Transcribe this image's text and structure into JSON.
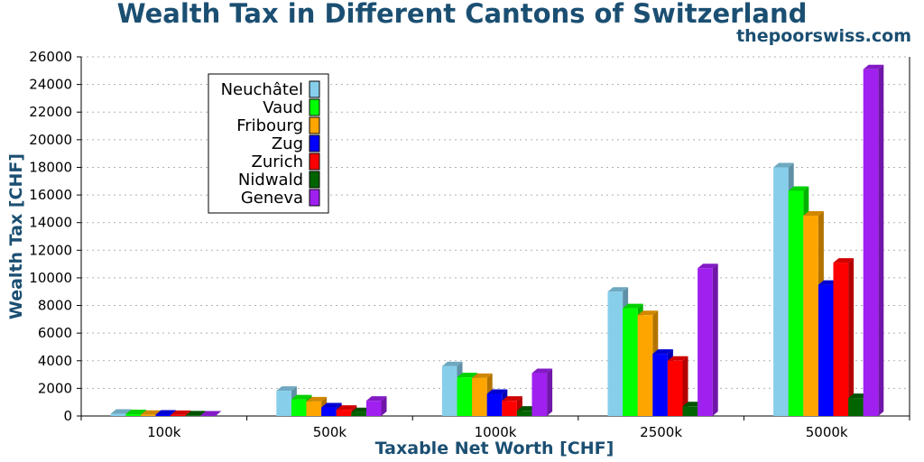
{
  "header": {
    "title": "Wealth Tax in Different Cantons of Switzerland",
    "site": "thepoorswiss.com"
  },
  "chart_data": {
    "type": "bar",
    "title": "Wealth Tax in Different Cantons of Switzerland",
    "xlabel": "Taxable Net Worth [CHF]",
    "ylabel": "Wealth Tax [CHF]",
    "ylim": [
      0,
      26000
    ],
    "yticks": [
      0,
      2000,
      4000,
      6000,
      8000,
      10000,
      12000,
      14000,
      16000,
      18000,
      20000,
      22000,
      24000,
      26000
    ],
    "grid": true,
    "legend_position": "top-left",
    "categories": [
      "100k",
      "500k",
      "1000k",
      "2500k",
      "5000k"
    ],
    "series": [
      {
        "name": "Neuchâtel",
        "color": "#87ceeb",
        "values": [
          160,
          1820,
          3600,
          9000,
          18000
        ]
      },
      {
        "name": "Vaud",
        "color": "#00ff00",
        "values": [
          130,
          1200,
          2800,
          7800,
          16300
        ]
      },
      {
        "name": "Fribourg",
        "color": "#ffa500",
        "values": [
          80,
          1050,
          2750,
          7300,
          14500
        ]
      },
      {
        "name": "Zug",
        "color": "#0000ff",
        "values": [
          100,
          620,
          1600,
          4500,
          9500
        ]
      },
      {
        "name": "Zurich",
        "color": "#ff0000",
        "values": [
          70,
          450,
          1100,
          4000,
          11100
        ]
      },
      {
        "name": "Nidwald",
        "color": "#006400",
        "values": [
          40,
          280,
          380,
          700,
          1300
        ]
      },
      {
        "name": "Geneva",
        "color": "#a020f0",
        "values": [
          30,
          1100,
          3100,
          10700,
          25100
        ]
      }
    ]
  }
}
